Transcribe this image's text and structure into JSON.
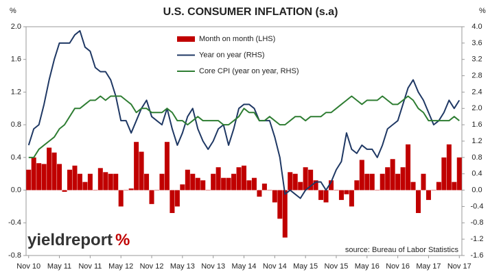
{
  "chart_data": {
    "type": "bar_line",
    "title": "U.S. CONSUMER INFLATION (s.a)",
    "y_unit": "%",
    "y2_unit": "%",
    "source": "source: Bureau of Labor Statistics",
    "logo": {
      "word": "yieldreport",
      "sign": "%"
    },
    "categories": [
      "Nov 10",
      null,
      null,
      null,
      null,
      null,
      "May 11",
      null,
      null,
      null,
      null,
      null,
      "Nov 11",
      null,
      null,
      null,
      null,
      null,
      "May 12",
      null,
      null,
      null,
      null,
      null,
      "Nov 12",
      null,
      null,
      null,
      null,
      null,
      "May 13",
      null,
      null,
      null,
      null,
      null,
      "Nov 13",
      null,
      null,
      null,
      null,
      null,
      "May 14",
      null,
      null,
      null,
      null,
      null,
      "Nov 14",
      null,
      null,
      null,
      null,
      null,
      "May 15",
      null,
      null,
      null,
      null,
      null,
      "Nov 15",
      null,
      null,
      null,
      null,
      null,
      "May 16",
      null,
      null,
      null,
      null,
      null,
      "Nov 16",
      null,
      null,
      null,
      null,
      null,
      "May 17",
      null,
      null,
      null,
      null,
      null,
      "Nov 17"
    ],
    "ylim": [
      -0.8,
      2.0
    ],
    "yticks": [
      -0.8,
      -0.4,
      {
        "value": 0,
        "label": "0.0"
      },
      0.4,
      0.8,
      1.2,
      1.6,
      {
        "value": 2,
        "label": "2.0"
      }
    ],
    "y2lim": [
      -1.6,
      4.0
    ],
    "y2ticks": [
      -1.6,
      -1.2,
      -0.8,
      -0.4,
      {
        "value": 0,
        "label": "0.0"
      },
      0.4,
      0.8,
      1.2,
      1.6,
      {
        "value": 2,
        "label": "2.0"
      },
      2.4,
      2.8,
      3.2,
      3.6,
      {
        "value": 4,
        "label": "4.0"
      }
    ],
    "grid": false,
    "series": [
      {
        "name": "Month on month (LHS)",
        "kind": "bar",
        "color": "#c00000",
        "values": [
          0.25,
          0.4,
          0.33,
          0.32,
          0.52,
          0.46,
          0.32,
          -0.02,
          0.25,
          0.3,
          0.2,
          0.1,
          0.2,
          0.0,
          0.27,
          0.22,
          0.2,
          0.2,
          -0.2,
          0.0,
          0.02,
          0.59,
          0.47,
          0.2,
          -0.17,
          0.0,
          0.2,
          0.59,
          -0.28,
          -0.2,
          0.07,
          0.25,
          0.2,
          0.15,
          0.12,
          0.0,
          0.2,
          0.28,
          0.15,
          0.15,
          0.2,
          0.28,
          0.3,
          0.12,
          0.15,
          -0.08,
          0.08,
          0.0,
          -0.15,
          -0.35,
          -0.58,
          0.22,
          0.2,
          0.1,
          0.28,
          0.25,
          0.12,
          -0.12,
          -0.15,
          0.12,
          0.0,
          -0.12,
          -0.05,
          -0.2,
          0.12,
          0.37,
          0.2,
          0.2,
          0.0,
          0.2,
          0.28,
          0.38,
          0.2,
          0.28,
          0.56,
          0.1,
          -0.28,
          0.2,
          -0.12,
          0.0,
          0.1,
          0.4,
          0.56,
          0.1,
          0.4
        ]
      },
      {
        "name": "Year on year (RHS)",
        "kind": "line",
        "axis": "y2",
        "color": "#1f3864",
        "values": [
          1.1,
          1.5,
          1.6,
          2.1,
          2.7,
          3.2,
          3.6,
          3.6,
          3.6,
          3.8,
          3.9,
          3.5,
          3.4,
          3.0,
          2.9,
          2.9,
          2.7,
          2.3,
          1.7,
          1.7,
          1.4,
          1.7,
          2.0,
          2.2,
          1.8,
          1.7,
          1.6,
          2.0,
          1.5,
          1.1,
          1.4,
          1.8,
          2.0,
          1.5,
          1.2,
          1.0,
          1.2,
          1.5,
          1.6,
          1.1,
          1.5,
          2.0,
          2.1,
          2.1,
          2.0,
          1.7,
          1.7,
          1.7,
          1.3,
          0.8,
          -0.1,
          0.0,
          -0.1,
          -0.2,
          0.0,
          0.1,
          0.2,
          0.2,
          0.0,
          0.2,
          0.5,
          0.7,
          1.4,
          1.0,
          0.9,
          1.1,
          1.0,
          1.0,
          0.8,
          1.1,
          1.5,
          1.6,
          1.7,
          2.1,
          2.5,
          2.7,
          2.4,
          2.2,
          1.9,
          1.6,
          1.7,
          1.9,
          2.2,
          2.0,
          2.2
        ]
      },
      {
        "name": "Core CPI (year on year, RHS)",
        "kind": "line",
        "axis": "y2",
        "color": "#2e7d32",
        "values": [
          0.8,
          0.8,
          1.0,
          1.1,
          1.2,
          1.3,
          1.5,
          1.6,
          1.8,
          2.0,
          2.0,
          2.1,
          2.2,
          2.2,
          2.3,
          2.2,
          2.3,
          2.3,
          2.3,
          2.2,
          2.1,
          1.9,
          2.0,
          2.0,
          1.9,
          1.9,
          1.9,
          2.0,
          1.9,
          1.7,
          1.7,
          1.6,
          1.7,
          1.8,
          1.7,
          1.7,
          1.7,
          1.7,
          1.6,
          1.6,
          1.7,
          1.8,
          2.0,
          1.9,
          1.9,
          1.7,
          1.7,
          1.8,
          1.7,
          1.6,
          1.6,
          1.7,
          1.8,
          1.8,
          1.7,
          1.8,
          1.8,
          1.8,
          1.9,
          1.9,
          2.0,
          2.1,
          2.2,
          2.3,
          2.2,
          2.1,
          2.2,
          2.2,
          2.2,
          2.3,
          2.2,
          2.1,
          2.1,
          2.2,
          2.3,
          2.2,
          2.0,
          1.9,
          1.7,
          1.7,
          1.7,
          1.7,
          1.7,
          1.8,
          1.7
        ]
      }
    ]
  }
}
